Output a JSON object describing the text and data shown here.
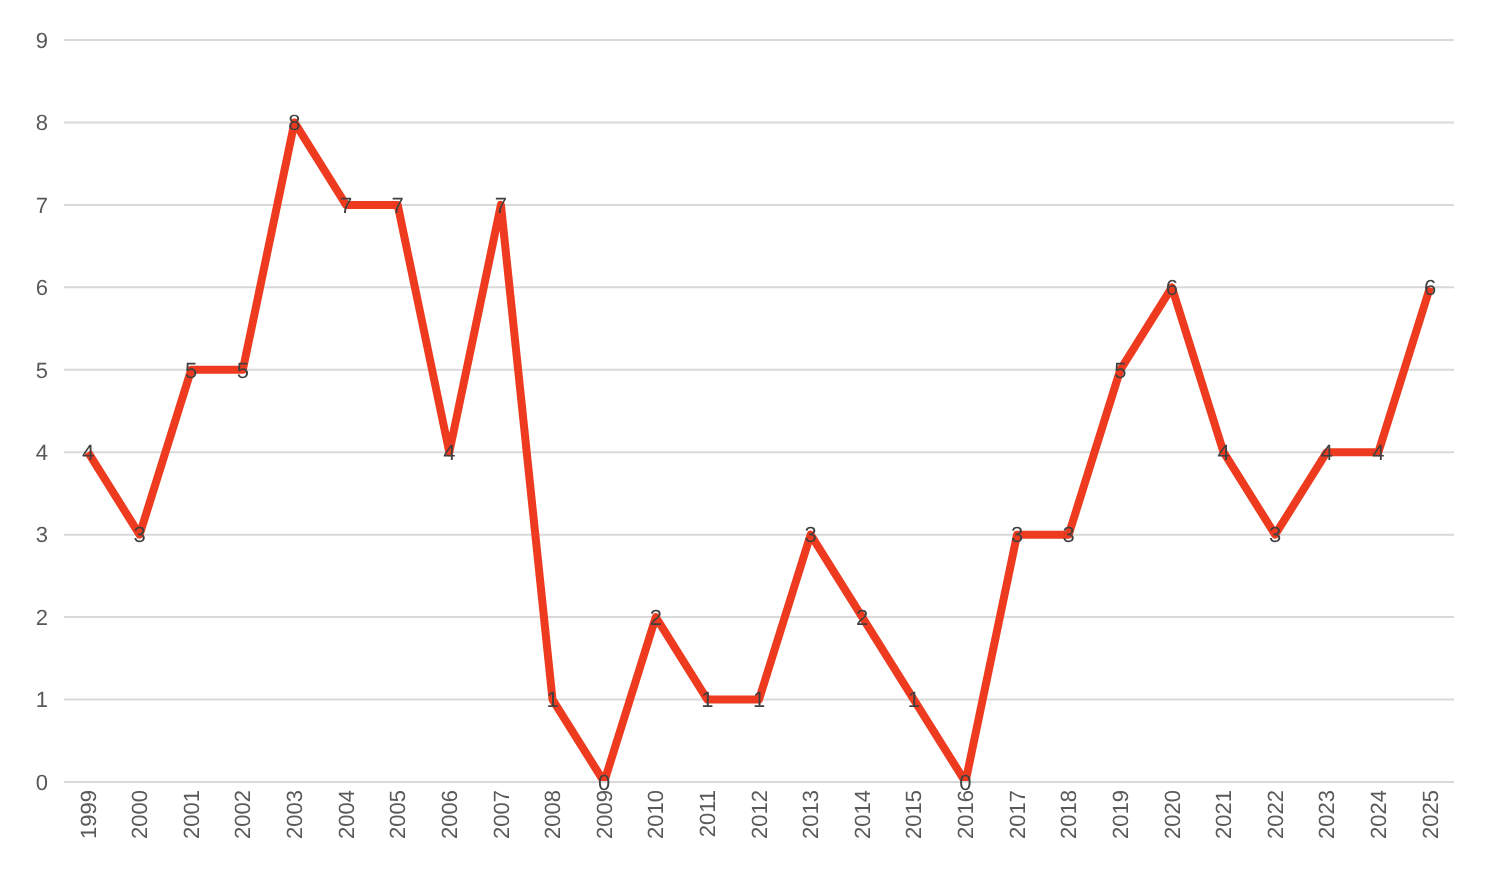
{
  "chart_data": {
    "type": "line",
    "categories": [
      "1999",
      "2000",
      "2001",
      "2002",
      "2003",
      "2004",
      "2005",
      "2006",
      "2007",
      "2008",
      "2009",
      "2010",
      "2011",
      "2012",
      "2013",
      "2014",
      "2015",
      "2016",
      "2017",
      "2018",
      "2019",
      "2020",
      "2021",
      "2022",
      "2023",
      "2024",
      "2025"
    ],
    "series": [
      {
        "color": "#ee3b1f",
        "values": [
          4,
          3,
          5,
          5,
          8,
          7,
          7,
          4,
          7,
          1,
          0,
          2,
          1,
          1,
          3,
          2,
          1,
          0,
          3,
          3,
          5,
          6,
          4,
          3,
          4,
          4,
          6
        ]
      }
    ],
    "ylim": [
      0,
      9
    ],
    "yticks": [
      0,
      1,
      2,
      3,
      4,
      5,
      6,
      7,
      8,
      9
    ],
    "grid": "y",
    "data_labels": true,
    "marker": "none",
    "line_style": "solid"
  }
}
